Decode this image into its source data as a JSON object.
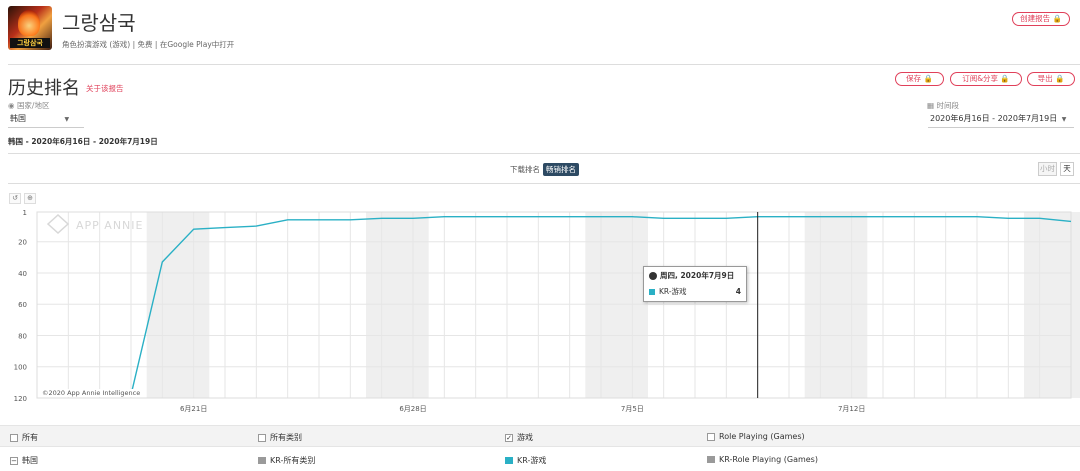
{
  "app": {
    "title": "그랑삼국",
    "icon_text": "그랑삼국",
    "subtitle": "角色扮演游戏 (游戏)  |  免费  |  在Google Play中打开"
  },
  "header": {
    "create_report": "创建报告 🔒"
  },
  "section": {
    "title": "历史排名",
    "report_link": "关于该报告",
    "actions": {
      "save": "保存 🔒",
      "subscribe": "订阅&分享 🔒",
      "export": "导出 🔒"
    }
  },
  "filters": {
    "country_label": "国家/地区",
    "country_value": "韩国",
    "period_label": "时间段",
    "period_value": "2020年6月16日 - 2020年7月19日"
  },
  "summary": "韩国 - 2020年6月16日 - 2020年7月19日",
  "tabs": {
    "downloads": "下载排名",
    "grossing": "畅销排名",
    "active": "grossing"
  },
  "granularity": {
    "hour": "小时",
    "day": "天"
  },
  "tools": {
    "reset_icon": "undo-icon",
    "zoom_icon": "zoom-icon"
  },
  "watermark": "APP ANNIE",
  "copyright": "©2020 App Annie Intelligence",
  "tooltip": {
    "title": "周四, 2020年7月9日",
    "series": "KR-游戏",
    "value": "4"
  },
  "legend": {
    "row1": {
      "all": "所有",
      "all_cat": "所有类别",
      "games": "游戏",
      "rpg": "Role Playing (Games)"
    },
    "row2": {
      "country": "韩国",
      "kr_all": "KR-所有类别",
      "kr_games": "KR-游戏",
      "kr_rpg": "KR-Role Playing (Games)"
    }
  },
  "colors": {
    "accent": "#e0405a",
    "line": "#2ab0c5",
    "legend_gray": "#9a9a9a",
    "tab_active": "#2d4a63"
  },
  "chart_data": {
    "type": "line",
    "y_axis_reversed": true,
    "ylim": [
      1,
      120
    ],
    "yticks": [
      1,
      20,
      40,
      60,
      80,
      100,
      120
    ],
    "x_tick_labels": [
      "6月21日",
      "6月28日",
      "7月5日",
      "7月12日"
    ],
    "x": [
      "6/16",
      "6/17",
      "6/18",
      "6/19",
      "6/20",
      "6/21",
      "6/22",
      "6/23",
      "6/24",
      "6/25",
      "6/26",
      "6/27",
      "6/28",
      "6/29",
      "6/30",
      "7/1",
      "7/2",
      "7/3",
      "7/4",
      "7/5",
      "7/6",
      "7/7",
      "7/8",
      "7/9",
      "7/10",
      "7/11",
      "7/12",
      "7/13",
      "7/14",
      "7/15",
      "7/16",
      "7/17",
      "7/18",
      "7/19"
    ],
    "series": [
      {
        "name": "KR-游戏",
        "values": [
          null,
          null,
          118,
          118,
          33,
          12,
          11,
          10,
          6,
          6,
          6,
          5,
          5,
          4,
          4,
          4,
          4,
          4,
          4,
          4,
          5,
          5,
          5,
          4,
          4,
          4,
          4,
          4,
          4,
          4,
          4,
          5,
          5,
          7
        ]
      }
    ],
    "shaded_weekends": true,
    "highlight_x": "7/9"
  }
}
